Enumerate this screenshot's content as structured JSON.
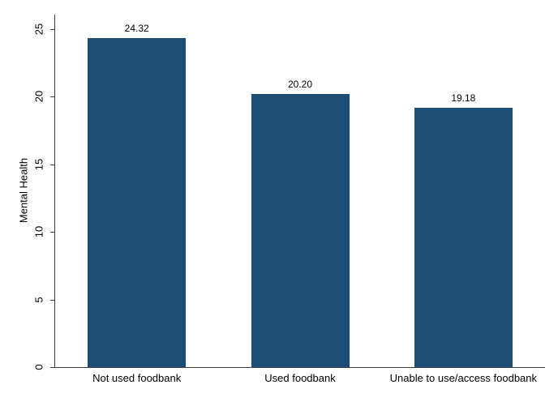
{
  "chart_data": {
    "type": "bar",
    "categories": [
      "Not used foodbank",
      "Used foodbank",
      "Unable to use/access foodbank"
    ],
    "values": [
      24.32,
      20.2,
      19.18
    ],
    "value_labels": [
      "24.32",
      "20.20",
      "19.18"
    ],
    "title": "",
    "xlabel": "",
    "ylabel": "Mental Health",
    "ylim": [
      0,
      26
    ],
    "yticks": [
      0,
      5,
      10,
      15,
      20,
      25
    ],
    "grid": false,
    "legend_position": "none",
    "bar_color": "#1d4f76",
    "axis_color": "#3c3c3c",
    "text_color": "#000000",
    "background_color": "#ffffff"
  }
}
